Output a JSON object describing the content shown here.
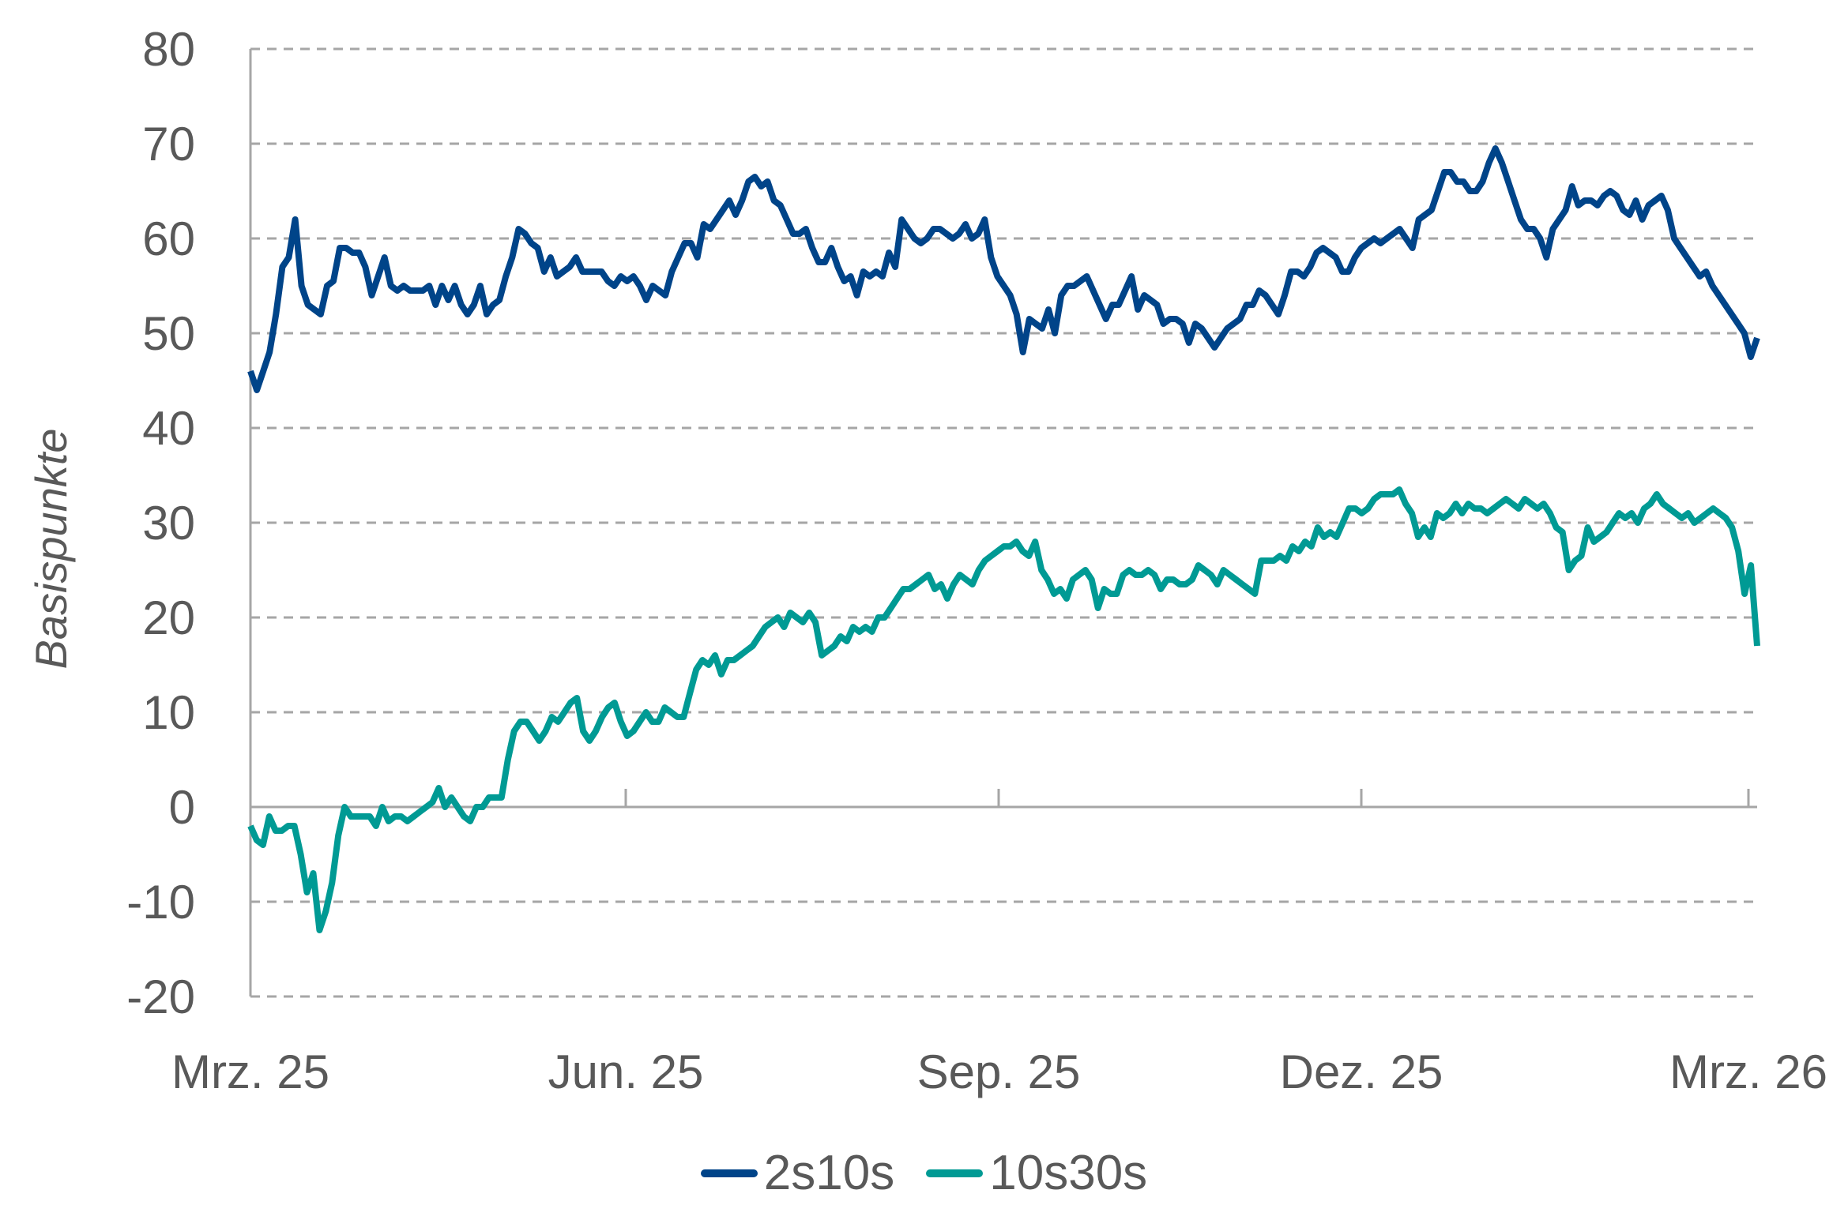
{
  "chart_data": {
    "type": "line",
    "title": "",
    "xlabel": "",
    "ylabel": "Basispunkte",
    "ylim": [
      -20,
      80
    ],
    "yticks": [
      -20,
      -10,
      0,
      10,
      20,
      30,
      40,
      50,
      60,
      70,
      80
    ],
    "xtick_labels": [
      "Mrz. 25",
      "Jun. 25",
      "Sep. 25",
      "Dez. 25",
      "Mrz. 26"
    ],
    "x_range": [
      "Mrz. 25",
      "Mrz. 26"
    ],
    "grid": "horizontal dashed",
    "legend_position": "bottom",
    "series": [
      {
        "name": "2s10s",
        "color": "#004489",
        "values": [
          46,
          44,
          46,
          48,
          52,
          57,
          58,
          62,
          55,
          53,
          52.5,
          52,
          55,
          55.5,
          59,
          59,
          58.5,
          58.5,
          57,
          54,
          56,
          58,
          55,
          54.5,
          55,
          54.5,
          54.5,
          54.5,
          55,
          53,
          55,
          53.5,
          55,
          53,
          52,
          53,
          55,
          52,
          53,
          53.5,
          56,
          58,
          61,
          60.5,
          59.5,
          59,
          56.5,
          58,
          56,
          56.5,
          57,
          58,
          56.5,
          56.5,
          56.5,
          56.5,
          55.5,
          55,
          56,
          55.5,
          56,
          55,
          53.5,
          55,
          54.5,
          54,
          56.5,
          58,
          59.5,
          59.5,
          58,
          61.5,
          61,
          62,
          63,
          64,
          62.5,
          64,
          66,
          66.5,
          65.5,
          66,
          64,
          63.5,
          62,
          60.5,
          60.5,
          61,
          59,
          57.5,
          57.5,
          59,
          57,
          55.5,
          56,
          54,
          56.5,
          56,
          56.5,
          56,
          58.5,
          57,
          62,
          61,
          60,
          59.5,
          60,
          61,
          61,
          60.5,
          60,
          60.5,
          61.5,
          60,
          60.5,
          62,
          58,
          56,
          55,
          54,
          52,
          48,
          51.5,
          51,
          50.5,
          52.5,
          50,
          54,
          55,
          55,
          55.5,
          56,
          54.5,
          53,
          51.5,
          53,
          53,
          54.5,
          56,
          52.5,
          54,
          53.5,
          53,
          51,
          51.5,
          51.5,
          51,
          49,
          51,
          50.5,
          49.5,
          48.5,
          49.5,
          50.5,
          51,
          51.5,
          53,
          53,
          54.5,
          54,
          53,
          52,
          54,
          56.5,
          56.5,
          56,
          57,
          58.5,
          59,
          58.5,
          58,
          56.5,
          56.5,
          58,
          59,
          59.5,
          60,
          59.5,
          60,
          60.5,
          61,
          60,
          59,
          62,
          62.5,
          63,
          65,
          67,
          67,
          66,
          66,
          65,
          65,
          66,
          68,
          69.5,
          68,
          66,
          64,
          62,
          61,
          61,
          60,
          58,
          61,
          62,
          63,
          65.5,
          63.5,
          64,
          64,
          63.5,
          64.5,
          65,
          64.5,
          63,
          62.5,
          64,
          62,
          63.5,
          64,
          64.5,
          63,
          60,
          59,
          58,
          57,
          56,
          56.5,
          55,
          54,
          53,
          52,
          51,
          50,
          47.5,
          49.5
        ]
      },
      {
        "name": "10s30s",
        "color": "#009A94",
        "values": [
          -2,
          -3.5,
          -4,
          -1,
          -2.5,
          -2.5,
          -2,
          -2,
          -5,
          -9,
          -7,
          -13,
          -11,
          -8,
          -3,
          0,
          -1,
          -1,
          -1,
          -1,
          -2,
          0,
          -1.5,
          -1,
          -1,
          -1.5,
          -1,
          -0.5,
          0,
          0.5,
          2,
          0,
          1,
          0,
          -1,
          -1.5,
          0,
          0,
          1,
          1,
          1,
          5,
          8,
          9,
          9,
          8,
          7,
          8,
          9.5,
          9,
          10,
          11,
          11.5,
          8,
          7,
          8,
          9.5,
          10.5,
          11,
          9,
          7.5,
          8,
          9,
          10,
          9,
          9,
          10.5,
          10,
          9.5,
          9.5,
          12,
          14.5,
          15.5,
          15,
          16,
          14,
          15.5,
          15.5,
          16,
          16.5,
          17,
          18,
          19,
          19.5,
          20,
          19,
          20.5,
          20,
          19.5,
          20.5,
          19.5,
          16,
          16.5,
          17,
          18,
          17.5,
          19,
          18.5,
          19,
          18.5,
          20,
          20,
          21,
          22,
          23,
          23,
          23.5,
          24,
          24.5,
          23,
          23.5,
          22,
          23.5,
          24.5,
          24,
          23.5,
          25,
          26,
          26.5,
          27,
          27.5,
          27.5,
          28,
          27,
          26.5,
          28,
          25,
          24,
          22.5,
          23,
          22,
          24,
          24.5,
          25,
          24,
          21,
          23,
          22.5,
          22.5,
          24.5,
          25,
          24.5,
          24.5,
          25,
          24.5,
          23,
          24,
          24,
          23.5,
          23.5,
          24,
          25.5,
          25,
          24.5,
          23.5,
          25,
          24.5,
          24,
          23.5,
          23,
          22.5,
          26,
          26,
          26,
          26.5,
          26,
          27.5,
          27,
          28,
          27.5,
          29.5,
          28.5,
          29,
          28.5,
          30,
          31.5,
          31.5,
          31,
          31.5,
          32.5,
          33,
          33,
          33,
          33.5,
          32,
          31,
          28.5,
          29.5,
          28.5,
          31,
          30.5,
          31,
          32,
          31,
          32,
          31.5,
          31.5,
          31,
          31.5,
          32,
          32.5,
          32,
          31.5,
          32.5,
          32,
          31.5,
          32,
          31,
          29.5,
          29,
          25,
          26,
          26.5,
          29.5,
          28,
          28.5,
          29,
          30,
          31,
          30.5,
          31,
          30,
          31.5,
          32,
          33,
          32,
          31.5,
          31,
          30.5,
          31,
          30,
          30.5,
          31,
          31.5,
          31,
          30.5,
          29.5,
          27,
          22.5,
          25.5,
          17
        ]
      }
    ]
  },
  "legend": {
    "items": [
      {
        "label": "2s10s",
        "color": "#004489"
      },
      {
        "label": "10s30s",
        "color": "#009A94"
      }
    ]
  }
}
